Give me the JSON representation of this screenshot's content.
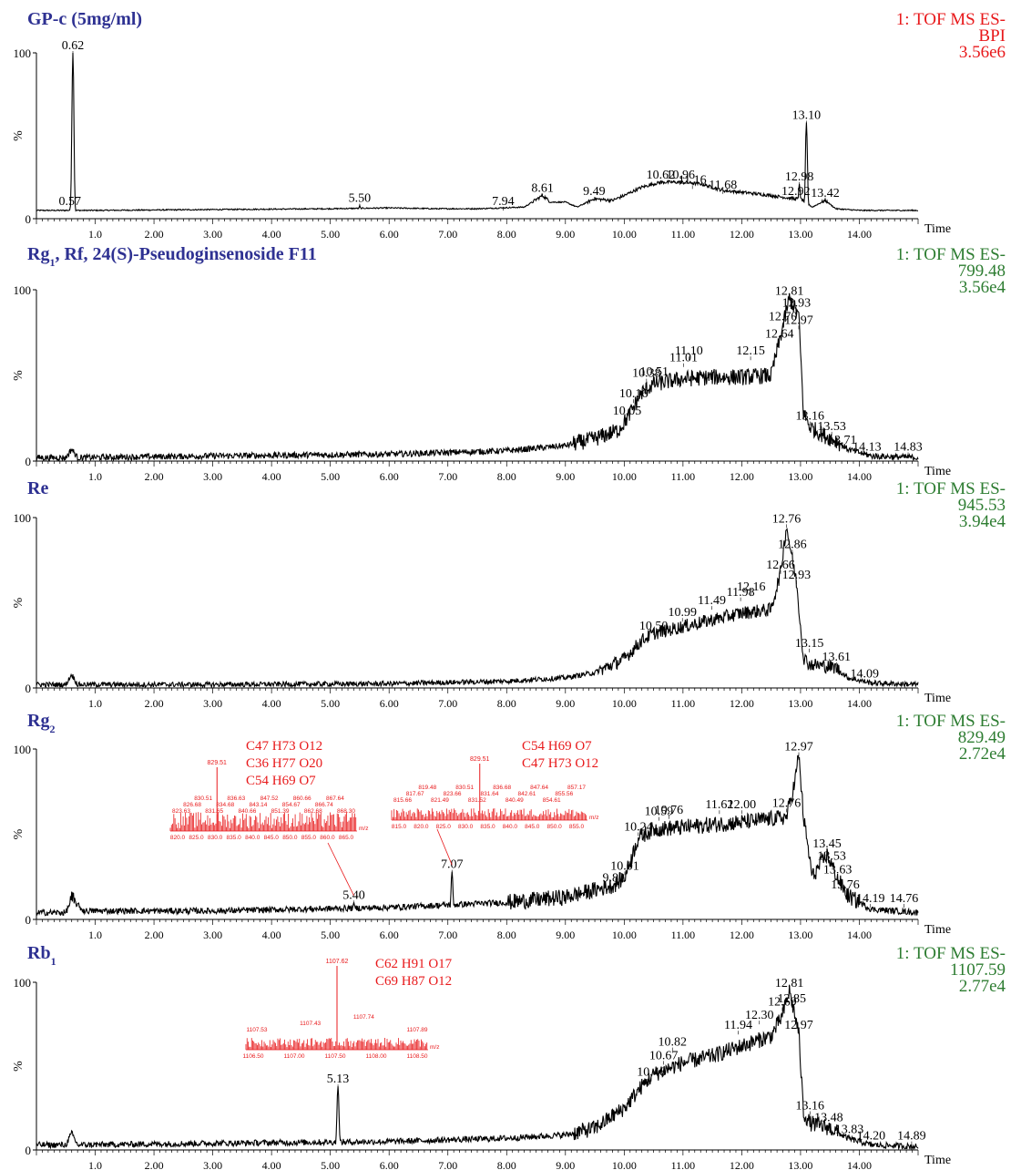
{
  "chart_data": [
    {
      "type": "line",
      "title": "GP-c (5mg/ml)",
      "title_base": "GP-c (5mg/ml)",
      "title_sub": "",
      "title_rest": "",
      "info": [
        "1: TOF MS ES-",
        "BPI",
        "3.56e6"
      ],
      "info_color": "#e8191b",
      "xlabel": "Time",
      "ylabel": "%",
      "xlim": [
        0,
        15
      ],
      "ylim": [
        0,
        100
      ],
      "x_ticks": [
        "1.0",
        "2.00",
        "3.00",
        "4.00",
        "5.00",
        "6.00",
        "7.00",
        "8.00",
        "9.00",
        "10.00",
        "11.00",
        "12.00",
        "13.00",
        "14.00"
      ],
      "y_ticks": [
        "100",
        "0"
      ],
      "peaks": [
        {
          "x": 0.57,
          "y": 6,
          "label": "0.57"
        },
        {
          "x": 0.62,
          "y": 100,
          "label": "0.62"
        },
        {
          "x": 5.5,
          "y": 8,
          "label": "5.50"
        },
        {
          "x": 7.94,
          "y": 6,
          "label": "7.94"
        },
        {
          "x": 8.61,
          "y": 14,
          "label": "8.61"
        },
        {
          "x": 9.49,
          "y": 12,
          "label": "9.49"
        },
        {
          "x": 10.62,
          "y": 22,
          "label": "10.62"
        },
        {
          "x": 10.96,
          "y": 22,
          "label": "10.96"
        },
        {
          "x": 11.16,
          "y": 19,
          "label": "11.16"
        },
        {
          "x": 11.68,
          "y": 16,
          "label": "11.68"
        },
        {
          "x": 12.92,
          "y": 12,
          "label": "12.92"
        },
        {
          "x": 12.98,
          "y": 21,
          "label": "12.98"
        },
        {
          "x": 13.1,
          "y": 58,
          "label": "13.10"
        },
        {
          "x": 13.42,
          "y": 11,
          "label": "13.42"
        }
      ],
      "baseline": [
        [
          0,
          5
        ],
        [
          1,
          5
        ],
        [
          3,
          5.5
        ],
        [
          5,
          6
        ],
        [
          6,
          6.5
        ],
        [
          6.8,
          6
        ],
        [
          7.5,
          6
        ],
        [
          8.3,
          7
        ],
        [
          8.61,
          14
        ],
        [
          8.75,
          10
        ],
        [
          9.0,
          10
        ],
        [
          9.2,
          7
        ],
        [
          9.49,
          12
        ],
        [
          9.8,
          11
        ],
        [
          10.0,
          14
        ],
        [
          10.3,
          19
        ],
        [
          10.62,
          22
        ],
        [
          10.96,
          22
        ],
        [
          11.3,
          21
        ],
        [
          11.68,
          17
        ],
        [
          12.0,
          16
        ],
        [
          12.5,
          14
        ],
        [
          12.9,
          12
        ],
        [
          13.0,
          12
        ],
        [
          13.2,
          7
        ],
        [
          13.42,
          11
        ],
        [
          13.6,
          6
        ],
        [
          14,
          5
        ],
        [
          15,
          5
        ]
      ],
      "sharp": [
        [
          0.57,
          6
        ],
        [
          0.62,
          100
        ],
        [
          12.98,
          21
        ],
        [
          13.1,
          58
        ],
        [
          7.94,
          6
        ],
        [
          5.5,
          8
        ]
      ],
      "noise": 0.6,
      "insets": [],
      "formulas": []
    },
    {
      "type": "line",
      "title": "Rg1, Rf, 24(S)-Pseudoginsenoside F11",
      "title_base": "Rg",
      "title_sub": "1",
      "title_rest": ", Rf, 24(S)-Pseudoginsenoside F11",
      "info": [
        "1: TOF MS ES-",
        "799.48",
        "3.56e4"
      ],
      "info_color": "#2e7d32",
      "xlabel": "Time",
      "ylabel": "%",
      "xlim": [
        0,
        15
      ],
      "ylim": [
        0,
        100
      ],
      "x_ticks": [
        "1.0",
        "2.00",
        "3.00",
        "4.00",
        "5.00",
        "6.00",
        "7.00",
        "8.00",
        "9.00",
        "10.00",
        "11.00",
        "12.00",
        "13.00",
        "14.00"
      ],
      "y_ticks": [
        "100",
        "0"
      ],
      "peaks": [
        {
          "x": 10.05,
          "y": 25,
          "label": "10.05"
        },
        {
          "x": 10.16,
          "y": 35,
          "label": "10.16"
        },
        {
          "x": 10.38,
          "y": 47,
          "label": "10.38"
        },
        {
          "x": 10.51,
          "y": 48,
          "label": "10.51"
        },
        {
          "x": 11.01,
          "y": 56,
          "label": "11.01"
        },
        {
          "x": 11.1,
          "y": 60,
          "label": "11.10"
        },
        {
          "x": 12.15,
          "y": 60,
          "label": "12.15"
        },
        {
          "x": 12.64,
          "y": 70,
          "label": "12.64"
        },
        {
          "x": 12.7,
          "y": 80,
          "label": "12.70"
        },
        {
          "x": 12.81,
          "y": 95,
          "label": "12.81"
        },
        {
          "x": 12.93,
          "y": 88,
          "label": "12.93"
        },
        {
          "x": 12.97,
          "y": 78,
          "label": "12.97"
        },
        {
          "x": 13.16,
          "y": 22,
          "label": "13.16"
        },
        {
          "x": 13.53,
          "y": 16,
          "label": "13.53"
        },
        {
          "x": 13.71,
          "y": 8,
          "label": "13.71"
        },
        {
          "x": 14.13,
          "y": 4,
          "label": "14.13"
        },
        {
          "x": 14.83,
          "y": 4,
          "label": "14.83"
        }
      ],
      "baseline": [
        [
          0,
          2
        ],
        [
          0.5,
          2
        ],
        [
          0.6,
          7
        ],
        [
          0.7,
          2
        ],
        [
          3,
          3
        ],
        [
          6,
          4
        ],
        [
          8,
          6
        ],
        [
          9,
          9
        ],
        [
          9.5,
          13
        ],
        [
          9.9,
          18
        ],
        [
          10.05,
          25
        ],
        [
          10.3,
          40
        ],
        [
          10.5,
          45
        ],
        [
          11,
          48
        ],
        [
          11.5,
          49
        ],
        [
          12,
          49
        ],
        [
          12.5,
          50
        ],
        [
          12.64,
          70
        ],
        [
          12.81,
          95
        ],
        [
          12.97,
          85
        ],
        [
          13.05,
          28
        ],
        [
          13.16,
          20
        ],
        [
          13.4,
          15
        ],
        [
          13.6,
          12
        ],
        [
          13.8,
          7
        ],
        [
          14.2,
          3
        ],
        [
          15,
          2
        ]
      ],
      "sharp": [],
      "noise": 3,
      "insets": [],
      "formulas": []
    },
    {
      "type": "line",
      "title": "Re",
      "title_base": "Re",
      "title_sub": "",
      "title_rest": "",
      "info": [
        "1: TOF MS ES-",
        "945.53",
        "3.94e4"
      ],
      "info_color": "#2e7d32",
      "xlabel": "Time",
      "ylabel": "%",
      "xlim": [
        0,
        15
      ],
      "ylim": [
        0,
        100
      ],
      "x_ticks": [
        "1.0",
        "2.00",
        "3.00",
        "4.00",
        "5.00",
        "6.00",
        "7.00",
        "8.00",
        "9.00",
        "10.00",
        "11.00",
        "12.00",
        "13.00",
        "14.00"
      ],
      "y_ticks": [
        "100",
        "0"
      ],
      "peaks": [
        {
          "x": 10.5,
          "y": 32,
          "label": "10.50"
        },
        {
          "x": 10.99,
          "y": 40,
          "label": "10.99"
        },
        {
          "x": 11.49,
          "y": 47,
          "label": "11.49"
        },
        {
          "x": 11.98,
          "y": 52,
          "label": "11.98"
        },
        {
          "x": 12.16,
          "y": 55,
          "label": "12.16"
        },
        {
          "x": 12.66,
          "y": 68,
          "label": "12.66"
        },
        {
          "x": 12.76,
          "y": 95,
          "label": "12.76"
        },
        {
          "x": 12.86,
          "y": 80,
          "label": "12.86"
        },
        {
          "x": 12.93,
          "y": 62,
          "label": "12.93"
        },
        {
          "x": 13.15,
          "y": 22,
          "label": "13.15"
        },
        {
          "x": 13.61,
          "y": 14,
          "label": "13.61"
        },
        {
          "x": 14.09,
          "y": 4,
          "label": "14.09"
        }
      ],
      "baseline": [
        [
          0,
          2
        ],
        [
          0.5,
          2
        ],
        [
          0.6,
          8
        ],
        [
          0.7,
          2
        ],
        [
          3,
          2
        ],
        [
          6,
          2.5
        ],
        [
          8,
          4
        ],
        [
          9,
          6
        ],
        [
          9.5,
          9
        ],
        [
          10,
          17
        ],
        [
          10.3,
          28
        ],
        [
          10.5,
          32
        ],
        [
          11,
          36
        ],
        [
          11.5,
          40
        ],
        [
          12,
          44
        ],
        [
          12.5,
          46
        ],
        [
          12.66,
          68
        ],
        [
          12.76,
          95
        ],
        [
          12.93,
          62
        ],
        [
          13.05,
          18
        ],
        [
          13.15,
          14
        ],
        [
          13.6,
          12
        ],
        [
          13.8,
          6
        ],
        [
          14.2,
          3
        ],
        [
          15,
          2
        ]
      ],
      "sharp": [],
      "noise": 2.5,
      "insets": [],
      "formulas": []
    },
    {
      "type": "line",
      "title": "Rg2",
      "title_base": "Rg",
      "title_sub": "2",
      "title_rest": "",
      "info": [
        "1: TOF MS ES-",
        "829.49",
        "2.72e4"
      ],
      "info_color": "#2e7d32",
      "xlabel": "Time",
      "ylabel": "%",
      "xlim": [
        0,
        15
      ],
      "ylim": [
        0,
        100
      ],
      "x_ticks": [
        "1.0",
        "2.00",
        "3.00",
        "4.00",
        "5.00",
        "6.00",
        "7.00",
        "8.00",
        "9.00",
        "10.00",
        "11.00",
        "12.00",
        "13.00",
        "14.00"
      ],
      "y_ticks": [
        "100",
        "0"
      ],
      "peaks": [
        {
          "x": 5.4,
          "y": 10,
          "label": "5.40"
        },
        {
          "x": 7.07,
          "y": 28,
          "label": "7.07"
        },
        {
          "x": 9.82,
          "y": 20,
          "label": "9.82"
        },
        {
          "x": 10.01,
          "y": 27,
          "label": "10.01"
        },
        {
          "x": 10.24,
          "y": 50,
          "label": "10.24"
        },
        {
          "x": 10.59,
          "y": 59,
          "label": "10.59"
        },
        {
          "x": 10.76,
          "y": 60,
          "label": "10.76"
        },
        {
          "x": 11.62,
          "y": 63,
          "label": "11.62"
        },
        {
          "x": 12.0,
          "y": 63,
          "label": "12.00"
        },
        {
          "x": 12.76,
          "y": 64,
          "label": "12.76"
        },
        {
          "x": 12.97,
          "y": 97,
          "label": "12.97"
        },
        {
          "x": 13.45,
          "y": 40,
          "label": "13.45"
        },
        {
          "x": 13.53,
          "y": 33,
          "label": "13.53"
        },
        {
          "x": 13.63,
          "y": 25,
          "label": "13.63"
        },
        {
          "x": 13.76,
          "y": 16,
          "label": "13.76"
        },
        {
          "x": 14.19,
          "y": 8,
          "label": "14.19"
        },
        {
          "x": 14.76,
          "y": 8,
          "label": "14.76"
        }
      ],
      "baseline": [
        [
          0,
          4
        ],
        [
          0.5,
          4
        ],
        [
          0.6,
          12
        ],
        [
          0.8,
          5
        ],
        [
          3,
          5
        ],
        [
          6,
          7
        ],
        [
          8,
          10
        ],
        [
          9,
          13
        ],
        [
          9.82,
          20
        ],
        [
          10.01,
          25
        ],
        [
          10.24,
          48
        ],
        [
          10.5,
          53
        ],
        [
          11,
          54
        ],
        [
          11.62,
          56
        ],
        [
          12,
          57
        ],
        [
          12.76,
          60
        ],
        [
          12.9,
          80
        ],
        [
          12.97,
          97
        ],
        [
          13.05,
          60
        ],
        [
          13.2,
          25
        ],
        [
          13.45,
          38
        ],
        [
          13.63,
          24
        ],
        [
          13.8,
          14
        ],
        [
          14.2,
          6
        ],
        [
          15,
          4
        ]
      ],
      "sharp": [
        [
          5.4,
          10
        ],
        [
          7.07,
          28
        ]
      ],
      "noise": 3,
      "insets": [
        {
          "center_mz": "829.51",
          "center_label_x": 0.25,
          "axis": [
            "820.0",
            "825.0",
            "830.0",
            "835.0",
            "840.0",
            "845.0",
            "850.0",
            "855.0",
            "860.0",
            "865.0"
          ],
          "labels": [
            "823.63",
            "826.68",
            "830.51",
            "831.65",
            "834.68",
            "836.63",
            "840.66",
            "843.14",
            "847.52",
            "851.39",
            "854.67",
            "860.66",
            "862.68",
            "866.74",
            "867.64",
            "868.30"
          ],
          "unit": "m/z"
        },
        {
          "center_mz": "829.51",
          "center_label_x": 0.45,
          "axis": [
            "815.0",
            "820.0",
            "825.0",
            "830.0",
            "835.0",
            "840.0",
            "845.0",
            "850.0",
            "855.0"
          ],
          "labels": [
            "815.66",
            "817.67",
            "819.48",
            "821.49",
            "823.66",
            "830.51",
            "831.52",
            "831.64",
            "836.68",
            "840.49",
            "842.61",
            "847.64",
            "854.61",
            "855.56",
            "857.17"
          ],
          "unit": "m/z"
        }
      ],
      "formulas": [
        {
          "lines": [
            "C47 H73 O12",
            "C36 H77 O20",
            "C54 H69 O7"
          ]
        },
        {
          "lines": [
            "C54 H69 O7",
            "C47 H73 O12"
          ]
        }
      ]
    },
    {
      "type": "line",
      "title": "Rb1",
      "title_base": "Rb",
      "title_sub": "1",
      "title_rest": "",
      "info": [
        "1: TOF MS ES-",
        "1107.59",
        "2.77e4"
      ],
      "info_color": "#2e7d32",
      "xlabel": "Time",
      "ylabel": "%",
      "xlim": [
        0,
        15
      ],
      "ylim": [
        0,
        100
      ],
      "x_ticks": [
        "1.0",
        "2.00",
        "3.00",
        "4.00",
        "5.00",
        "6.00",
        "7.00",
        "8.00",
        "9.00",
        "10.00",
        "11.00",
        "12.00",
        "13.00",
        "14.00"
      ],
      "y_ticks": [
        "100",
        "0"
      ],
      "peaks": [
        {
          "x": 5.13,
          "y": 38,
          "label": "5.13"
        },
        {
          "x": 10.46,
          "y": 42,
          "label": "10.46"
        },
        {
          "x": 10.67,
          "y": 52,
          "label": "10.67"
        },
        {
          "x": 10.82,
          "y": 60,
          "label": "10.82"
        },
        {
          "x": 11.94,
          "y": 70,
          "label": "11.94"
        },
        {
          "x": 12.3,
          "y": 76,
          "label": "12.30"
        },
        {
          "x": 12.69,
          "y": 84,
          "label": "12.69"
        },
        {
          "x": 12.81,
          "y": 95,
          "label": "12.81"
        },
        {
          "x": 12.85,
          "y": 86,
          "label": "12.85"
        },
        {
          "x": 12.97,
          "y": 70,
          "label": "12.97"
        },
        {
          "x": 13.16,
          "y": 22,
          "label": "13.16"
        },
        {
          "x": 13.48,
          "y": 15,
          "label": "13.48"
        },
        {
          "x": 13.83,
          "y": 8,
          "label": "13.83"
        },
        {
          "x": 14.2,
          "y": 4,
          "label": "14.20"
        },
        {
          "x": 14.89,
          "y": 4,
          "label": "14.89"
        }
      ],
      "baseline": [
        [
          0,
          3
        ],
        [
          0.5,
          3
        ],
        [
          0.6,
          10
        ],
        [
          0.7,
          3
        ],
        [
          3,
          4
        ],
        [
          6,
          5
        ],
        [
          8,
          7
        ],
        [
          9,
          9
        ],
        [
          9.5,
          13
        ],
        [
          10,
          25
        ],
        [
          10.3,
          38
        ],
        [
          10.5,
          45
        ],
        [
          11,
          52
        ],
        [
          11.5,
          56
        ],
        [
          12,
          62
        ],
        [
          12.5,
          68
        ],
        [
          12.69,
          80
        ],
        [
          12.81,
          95
        ],
        [
          12.97,
          70
        ],
        [
          13.05,
          22
        ],
        [
          13.16,
          16
        ],
        [
          13.5,
          13
        ],
        [
          13.8,
          7
        ],
        [
          14.2,
          3
        ],
        [
          15,
          2
        ]
      ],
      "sharp": [
        [
          5.13,
          38
        ]
      ],
      "noise": 3,
      "insets": [
        {
          "center_mz": "1107.62",
          "center_label_x": 0.5,
          "axis": [
            "1106.50",
            "1107.00",
            "1107.50",
            "1108.00",
            "1108.50"
          ],
          "labels": [
            "1107.53",
            "1107.43",
            "1107.74",
            "1107.89"
          ],
          "unit": "m/z"
        }
      ],
      "formulas": [
        {
          "lines": [
            "C62 H91 O17",
            "C69 H87 O12"
          ]
        }
      ]
    }
  ]
}
